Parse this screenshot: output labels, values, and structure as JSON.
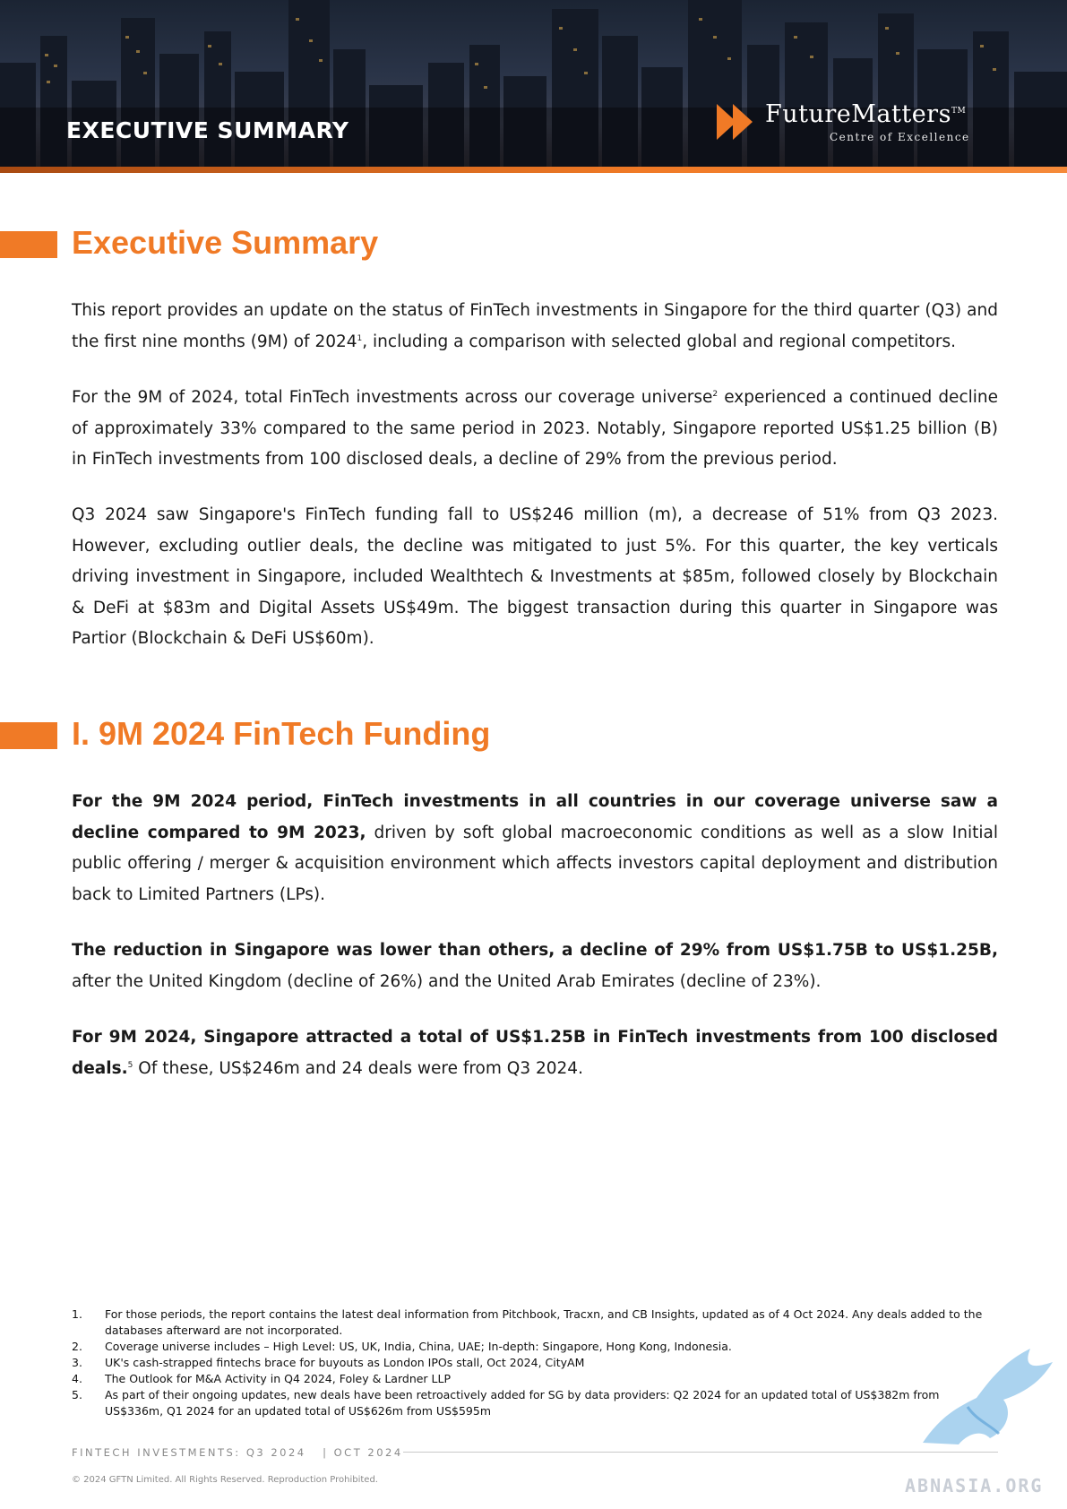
{
  "header": {
    "section_label": "EXECUTIVE SUMMARY",
    "brand_name": "FutureMatters",
    "brand_tm": "TM",
    "brand_subtitle": "Centre of Excellence"
  },
  "sections": [
    {
      "heading": "Executive Summary",
      "paragraphs": [
        {
          "text_a": "This report provides an update on the status of FinTech investments in Singapore for the third quarter (Q3) and the first nine months (9M) of 2024",
          "footnote": "1",
          "text_b": ", including a comparison with selected global and regional competitors."
        },
        {
          "text_a": "For the 9M of 2024, total FinTech investments across our coverage universe",
          "footnote": "2",
          "text_b": " experienced a continued decline of approximately 33% compared to the same period in 2023. Notably, Singapore reported US$1.25 billion (B) in FinTech investments from 100 disclosed deals, a decline of 29% from the previous period."
        },
        {
          "text": "Q3 2024 saw Singapore's FinTech funding fall to US$246 million (m), a decrease of 51% from Q3 2023. However, excluding outlier deals, the decline was mitigated to just 5%. For this quarter, the key verticals driving investment in Singapore, included Wealthtech & Investments at $85m, followed closely by Blockchain & DeFi at $83m and Digital Assets US$49m. The biggest transaction during this quarter in Singapore was Partior (Blockchain & DeFi US$60m)."
        }
      ]
    },
    {
      "heading": "I. 9M 2024 FinTech Funding",
      "paragraphs": [
        {
          "bold": "For the 9M 2024 period, FinTech investments in all countries in our coverage universe saw a decline compared to 9M 2023,",
          "text": " driven by soft global macroeconomic conditions as well as a slow Initial public offering / merger & acquisition environment which affects investors capital deployment and distribution back to Limited Partners (LPs)."
        },
        {
          "bold": "The reduction in Singapore was lower than others, a decline of 29% from US$1.75B to US$1.25B,",
          "text": " after the United Kingdom (decline of 26%) and the United Arab Emirates (decline of 23%)."
        },
        {
          "bold": "For 9M 2024, Singapore attracted a total of US$1.25B in FinTech investments from 100 disclosed deals.",
          "footnote": "5",
          "text": " Of these, US$246m and 24 deals were from Q3 2024."
        }
      ]
    }
  ],
  "footnotes": [
    {
      "num": "1.",
      "text": "For those periods, the report contains the latest deal information from Pitchbook, Tracxn, and CB Insights, updated as of 4 Oct 2024. Any deals added to the databases afterward are not incorporated."
    },
    {
      "num": "2.",
      "text": "Coverage universe includes – High Level: US, UK, India, China, UAE; In-depth: Singapore, Hong Kong, Indonesia."
    },
    {
      "num": "3.",
      "text": "UK's cash-strapped fintechs brace for buyouts as London IPOs stall, Oct 2024, CityAM"
    },
    {
      "num": "4.",
      "text": "The Outlook for M&A Activity in Q4 2024, Foley & Lardner LLP"
    },
    {
      "num": "5.",
      "text": "As part of their ongoing updates, new deals have been retroactively added for SG by data providers: Q2 2024 for an updated total of US$382m from US$336m, Q1 2024 for an updated total of US$626m from US$595m"
    }
  ],
  "footer": {
    "report_title": "FINTECH INVESTMENTS: Q3 2024   | OCT 2024",
    "copyright": "© 2024 GFTN Limited. All Rights Reserved. Reproduction Prohibited.",
    "watermark": "ABNASIA.ORG"
  },
  "colors": {
    "accent_orange": "#f07a26",
    "header_dark": "#1b2433",
    "text": "#1a1a1a",
    "muted": "#8a8a8a"
  }
}
